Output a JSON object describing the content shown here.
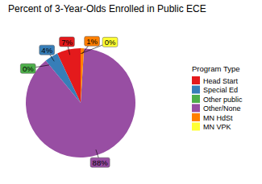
{
  "chart_data": {
    "type": "pie",
    "title": "Percent of 3-Year-Olds Enrolled in Public ECE",
    "legend_title": "Program Type",
    "categories": [
      "Head Start",
      "Special Ed",
      "Other public",
      "Other/None",
      "MN HdSt",
      "MN VPK"
    ],
    "values": [
      7,
      4,
      0,
      88,
      1,
      0
    ],
    "value_labels": [
      "7%",
      "4%",
      "0%",
      "88%",
      "1%",
      "0%"
    ],
    "colors": [
      "#e41a1c",
      "#377eb8",
      "#4daf4a",
      "#984ea3",
      "#ff7f00",
      "#ffff33"
    ],
    "data_labels": true,
    "legend": "right"
  }
}
